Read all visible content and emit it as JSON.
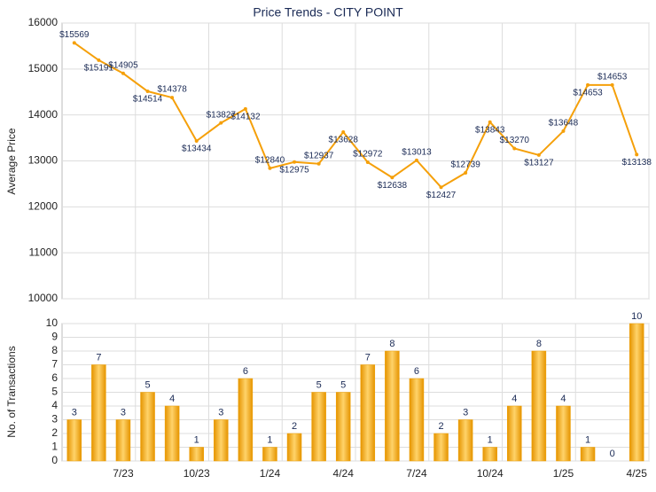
{
  "chart_data": [
    {
      "type": "line",
      "title": "Price Trends - CITY POINT",
      "y_label": "Average Price",
      "series": [
        {
          "name": "Average Price",
          "color": "#f5a00a",
          "values": [
            15569,
            15191,
            14905,
            14514,
            14378,
            13434,
            13827,
            14132,
            12840,
            12975,
            12937,
            13628,
            12972,
            12638,
            13013,
            12427,
            12739,
            13843,
            13270,
            13127,
            13648,
            14653,
            14653,
            13138
          ],
          "value_labels": [
            "$15569",
            "$15191",
            "$14905",
            "$14514",
            "$14378",
            "$13434",
            "$13827",
            "$14132",
            "$12840",
            "$12975",
            "$12937",
            "$13628",
            "$12972",
            "$12638",
            "$13013",
            "$12427",
            "$12739",
            "$13843",
            "$13270",
            "$13127",
            "$13648",
            "$14653",
            "$14653",
            "$13138"
          ]
        }
      ],
      "ylim": [
        10000,
        16000
      ],
      "yticks": [
        10000,
        11000,
        12000,
        13000,
        14000,
        15000,
        16000
      ],
      "grid": true
    },
    {
      "type": "bar",
      "y_label": "No. of Transactions",
      "color": "#f0a000",
      "categories": [
        null,
        null,
        "7/23",
        null,
        null,
        "10/23",
        null,
        null,
        "1/24",
        null,
        null,
        "4/24",
        null,
        null,
        "7/24",
        null,
        null,
        "10/24",
        null,
        null,
        "1/25",
        null,
        null,
        "4/25"
      ],
      "values": [
        3,
        7,
        3,
        5,
        4,
        1,
        3,
        6,
        1,
        2,
        5,
        5,
        7,
        8,
        6,
        2,
        3,
        1,
        4,
        8,
        4,
        1,
        0,
        10
      ],
      "ylim": [
        0,
        10
      ],
      "yticks": [
        0,
        1,
        2,
        3,
        4,
        5,
        6,
        7,
        8,
        9,
        10
      ],
      "grid": true
    }
  ]
}
